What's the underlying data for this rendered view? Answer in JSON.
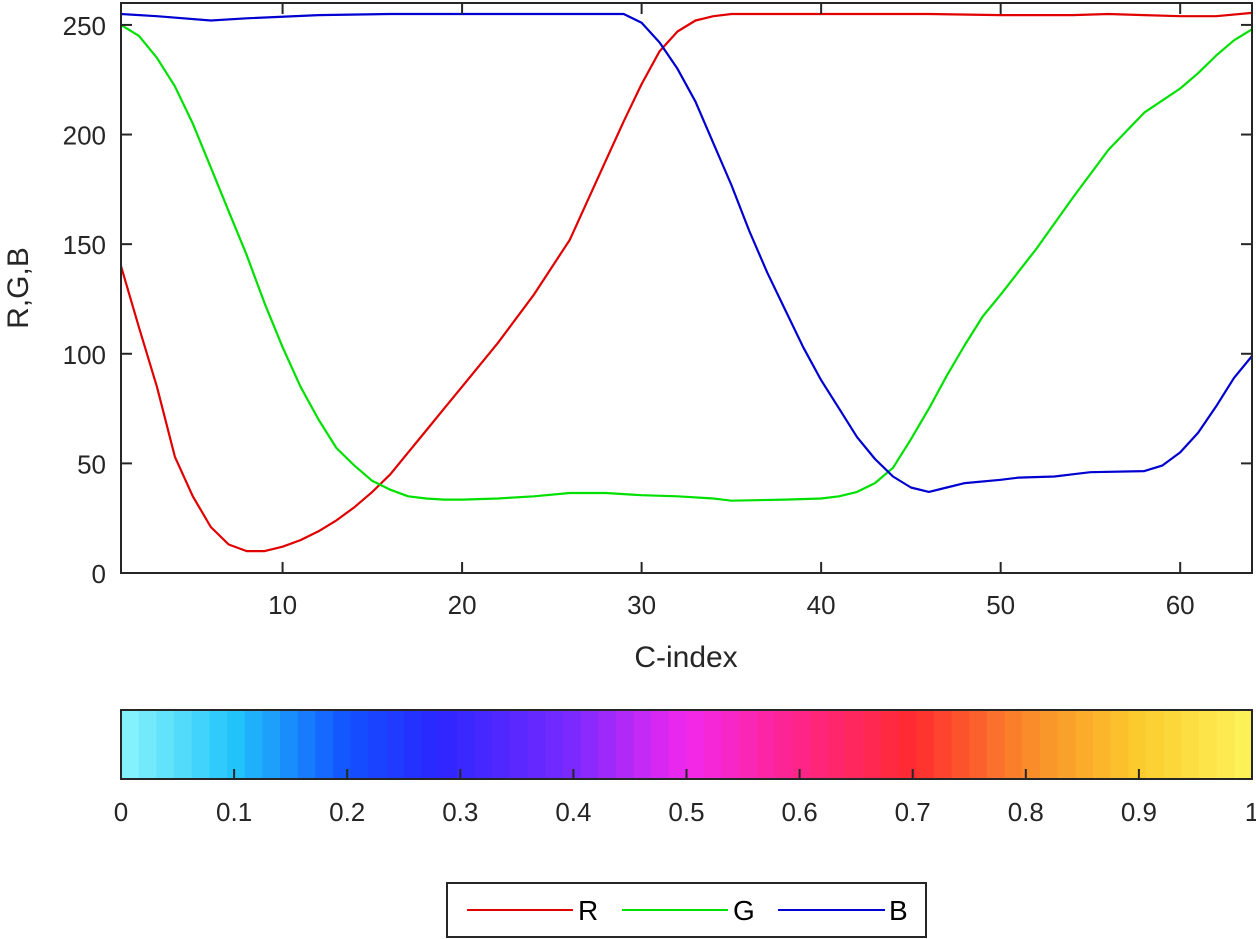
{
  "chart_data": [
    {
      "type": "line",
      "title": "",
      "xlabel": "C-index",
      "ylabel": "R,G,B",
      "xlim": [
        1,
        64
      ],
      "ylim": [
        0,
        260
      ],
      "xticks": [
        10,
        20,
        30,
        40,
        50,
        60
      ],
      "yticks": [
        0,
        50,
        100,
        150,
        200,
        250
      ],
      "grid": false,
      "legend": {
        "position": "bottom-outside",
        "orientation": "horizontal",
        "entries": [
          "R",
          "G",
          "B"
        ]
      },
      "series": [
        {
          "name": "R",
          "color": "#e00000",
          "x": [
            1,
            2,
            3,
            4,
            5,
            6,
            7,
            8,
            9,
            10,
            11,
            12,
            13,
            14,
            15,
            16,
            17,
            18,
            19,
            20,
            22,
            24,
            26,
            28,
            29,
            30,
            31,
            32,
            33,
            34,
            35,
            38,
            42,
            46,
            50,
            54,
            56,
            58,
            60,
            62,
            64
          ],
          "y": [
            140,
            112,
            85,
            53,
            35,
            21,
            13,
            10,
            10,
            12,
            15,
            19,
            24,
            30,
            37,
            45,
            55,
            65,
            75,
            85,
            105,
            127,
            152,
            188,
            206,
            223,
            238,
            247,
            252,
            254,
            255,
            255,
            255,
            255,
            254.5,
            254.5,
            255,
            254.5,
            254,
            254,
            255.5
          ]
        },
        {
          "name": "G",
          "color": "#00e000",
          "x": [
            1,
            2,
            3,
            4,
            5,
            6,
            7,
            8,
            9,
            10,
            11,
            12,
            13,
            14,
            15,
            16,
            17,
            18,
            19,
            20,
            22,
            24,
            26,
            28,
            30,
            32,
            34,
            35,
            38,
            40,
            41,
            42,
            43,
            44,
            45,
            46,
            47,
            48,
            49,
            50,
            52,
            54,
            56,
            58,
            60,
            61,
            62,
            63,
            64
          ],
          "y": [
            250,
            245,
            235,
            222,
            205,
            185,
            165,
            145,
            123,
            103,
            85,
            70,
            57,
            49,
            42,
            38,
            35,
            34,
            33.5,
            33.5,
            34,
            35,
            36.5,
            36.5,
            35.5,
            35,
            34,
            33,
            33.5,
            34,
            35,
            37,
            41,
            48,
            61,
            75,
            90,
            104,
            117,
            127,
            148,
            171,
            193,
            210,
            221,
            228,
            236,
            243,
            248
          ]
        },
        {
          "name": "B",
          "color": "#0000d0",
          "x": [
            1,
            3,
            6,
            8,
            12,
            16,
            20,
            25,
            29,
            30,
            31,
            32,
            33,
            34,
            35,
            36,
            37,
            38,
            39,
            40,
            41,
            42,
            43,
            44,
            45,
            46,
            47,
            48,
            50,
            51,
            53,
            54,
            55,
            58,
            59,
            60,
            61,
            62,
            63,
            64
          ],
          "y": [
            255,
            254,
            252,
            253,
            254.5,
            255,
            255,
            255,
            255,
            251,
            242,
            230,
            215,
            196,
            177,
            156,
            137,
            120,
            103,
            88,
            75,
            62,
            52,
            44,
            39,
            37,
            39,
            41,
            42.5,
            43.5,
            44,
            45,
            46,
            46.5,
            49,
            55,
            64,
            76,
            89,
            99
          ]
        }
      ]
    },
    {
      "type": "heatmap",
      "title": "",
      "orientation": "horizontal colorbar",
      "clim": [
        0,
        1
      ],
      "levels": 64,
      "ticks": [
        0,
        0.1,
        0.2,
        0.3,
        0.4,
        0.5,
        0.6,
        0.7,
        0.8,
        0.9,
        1
      ],
      "tick_labels": [
        "0",
        "0.1",
        "0.2",
        "0.3",
        "0.4",
        "0.5",
        "0.6",
        "0.7",
        "0.8",
        "0.9",
        "1"
      ],
      "color_stops": [
        {
          "pos": 0.0,
          "color": "#8cf6fc"
        },
        {
          "pos": 0.1,
          "color": "#22c4fb"
        },
        {
          "pos": 0.2,
          "color": "#1252ff"
        },
        {
          "pos": 0.28,
          "color": "#2b26ff"
        },
        {
          "pos": 0.4,
          "color": "#7b2aff"
        },
        {
          "pos": 0.5,
          "color": "#f228ee"
        },
        {
          "pos": 0.6,
          "color": "#ff2488"
        },
        {
          "pos": 0.7,
          "color": "#ff2a30"
        },
        {
          "pos": 0.8,
          "color": "#fa8a2a"
        },
        {
          "pos": 0.9,
          "color": "#fbcb2c"
        },
        {
          "pos": 1.0,
          "color": "#fdf45c"
        }
      ]
    }
  ],
  "axes": {
    "xlabel": "C-index",
    "ylabel": "R,G,B",
    "xtick_labels": [
      "10",
      "20",
      "30",
      "40",
      "50",
      "60"
    ],
    "ytick_labels": [
      "0",
      "50",
      "100",
      "150",
      "200",
      "250"
    ]
  },
  "legend": {
    "items": [
      {
        "label": "R",
        "color": "#e00000"
      },
      {
        "label": "G",
        "color": "#00e000"
      },
      {
        "label": "B",
        "color": "#0000d0"
      }
    ]
  },
  "style": {
    "axis_color": "#262626",
    "background": "#ffffff"
  }
}
